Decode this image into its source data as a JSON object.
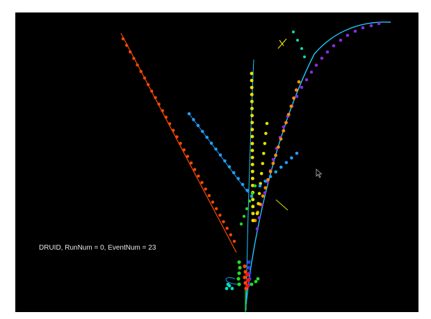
{
  "viewer": {
    "event_label": "DRUID, RunNum = 0, EventNum = 23",
    "background_color": "#000000"
  },
  "track_colors": {
    "orange_red": "#ff4a00",
    "orange": "#ff8c00",
    "yellow": "#e8e000",
    "cyan_blue": "#1ea0ff",
    "purple": "#8a2be2",
    "green": "#22dd22",
    "red": "#ff1010",
    "blue": "#2040ff",
    "teal": "#00e0c0",
    "fit_line": "#22c8ff"
  },
  "icons": {
    "cursor": "mouse-pointer-icon"
  }
}
